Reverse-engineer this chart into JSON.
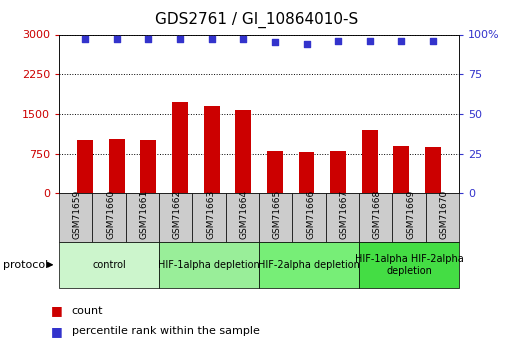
{
  "title": "GDS2761 / GI_10864010-S",
  "samples": [
    "GSM71659",
    "GSM71660",
    "GSM71661",
    "GSM71662",
    "GSM71663",
    "GSM71664",
    "GSM71665",
    "GSM71666",
    "GSM71667",
    "GSM71668",
    "GSM71669",
    "GSM71670"
  ],
  "counts": [
    1000,
    1020,
    1010,
    1720,
    1650,
    1580,
    800,
    780,
    790,
    1200,
    900,
    880
  ],
  "percentiles": [
    97,
    97,
    97,
    97,
    97,
    97,
    95,
    94,
    96,
    96,
    96,
    96
  ],
  "ylim_left": [
    0,
    3000
  ],
  "ylim_right": [
    0,
    100
  ],
  "yticks_left": [
    0,
    750,
    1500,
    2250,
    3000
  ],
  "yticks_right": [
    0,
    25,
    50,
    75,
    100
  ],
  "bar_color": "#cc0000",
  "dot_color": "#3333cc",
  "protocol_groups": [
    {
      "label": "control",
      "start": 0,
      "end": 3,
      "color": "#ccf5cc"
    },
    {
      "label": "HIF-1alpha depletion",
      "start": 3,
      "end": 6,
      "color": "#99ee99"
    },
    {
      "label": "HIF-2alpha depletion",
      "start": 6,
      "end": 9,
      "color": "#77ee77"
    },
    {
      "label": "HIF-1alpha HIF-2alpha\ndepletion",
      "start": 9,
      "end": 12,
      "color": "#44dd44"
    }
  ],
  "tick_box_color": "#cccccc",
  "tick_label_color_left": "#cc0000",
  "tick_label_color_right": "#3333cc",
  "title_fontsize": 11,
  "bar_width": 0.5,
  "dot_size": 20
}
